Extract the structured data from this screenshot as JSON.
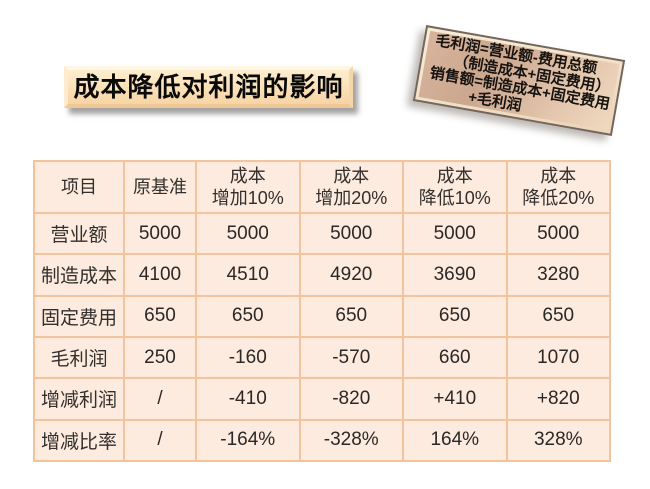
{
  "slide": {
    "title": "成本降低对利润的影响",
    "formula_box": {
      "lines": {
        "l1": "毛利润=营业额-费用总额",
        "l2": "（制造成本+固定费用）",
        "l3": "销售额=制造成本+固定费用",
        "l4": "+毛利润"
      }
    }
  },
  "colors": {
    "slide_background": "#FFFFFF",
    "table_fill": "#FCEBDE",
    "table_border": "#F1C49E",
    "title_fill_top": "#FDEECF",
    "title_fill_bottom": "#F8D4A4",
    "plaque_fill": "#CBA78E",
    "text": "#2B2828"
  },
  "table": {
    "headers": [
      "项目",
      "原基准",
      "成本\n增加10%",
      "成本\n增加20%",
      "成本\n降低10%",
      "成本\n降低20%"
    ],
    "rows": [
      {
        "label": "营业额",
        "values": [
          "5000",
          "5000",
          "5000",
          "5000",
          "5000"
        ]
      },
      {
        "label": "制造成本",
        "values": [
          "4100",
          "4510",
          "4920",
          "3690",
          "3280"
        ]
      },
      {
        "label": "固定费用",
        "values": [
          "650",
          "650",
          "650",
          "650",
          "650"
        ]
      },
      {
        "label": "毛利润",
        "values": [
          "250",
          "-160",
          "-570",
          "660",
          "1070"
        ]
      },
      {
        "label": "增减利润",
        "values": [
          "/",
          "-410",
          "-820",
          "+410",
          "+820"
        ]
      },
      {
        "label": "增减比率",
        "values": [
          "/",
          "-164%",
          "-328%",
          "164%",
          "328%"
        ]
      }
    ]
  },
  "chart_data": {
    "type": "table",
    "title": "成本降低对利润的影响",
    "columns": [
      "项目",
      "原基准",
      "成本增加10%",
      "成本增加20%",
      "成本降低10%",
      "成本降低20%"
    ],
    "rows": [
      [
        "营业额",
        5000,
        5000,
        5000,
        5000,
        5000
      ],
      [
        "制造成本",
        4100,
        4510,
        4920,
        3690,
        3280
      ],
      [
        "固定费用",
        650,
        650,
        650,
        650,
        650
      ],
      [
        "毛利润",
        250,
        -160,
        -570,
        660,
        1070
      ],
      [
        "增减利润",
        null,
        -410,
        -820,
        410,
        820
      ],
      [
        "增减比率(%)",
        null,
        -164,
        -328,
        164,
        328
      ]
    ]
  }
}
